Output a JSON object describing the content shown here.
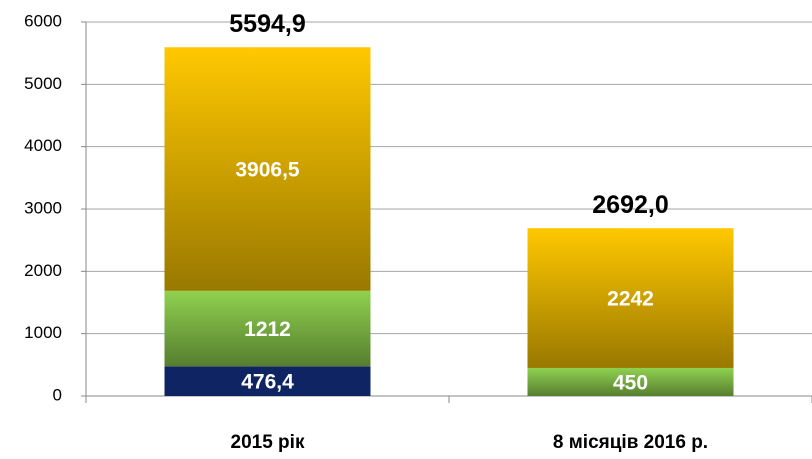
{
  "chart_data": {
    "type": "stacked_bar",
    "categories": [
      "2015 рік",
      "8 місяців 2016 р."
    ],
    "series": [
      {
        "color": "#0e2463",
        "values": [
          476.4,
          null
        ],
        "value_labels": [
          "476,4",
          null
        ]
      },
      {
        "color": "#8fd14f",
        "values": [
          1212,
          450
        ]
      },
      {
        "color": "#ffc800",
        "values": [
          3906.5,
          2242
        ],
        "value_labels": [
          "3906,5",
          "2242"
        ]
      }
    ],
    "totals": [
      5594.9,
      2692.0
    ],
    "total_labels": [
      "5594,9",
      "2692,0"
    ],
    "ylim": [
      0,
      6000
    ],
    "yticks": [
      0,
      1000,
      2000,
      3000,
      4000,
      5000,
      6000
    ],
    "grid": true
  }
}
